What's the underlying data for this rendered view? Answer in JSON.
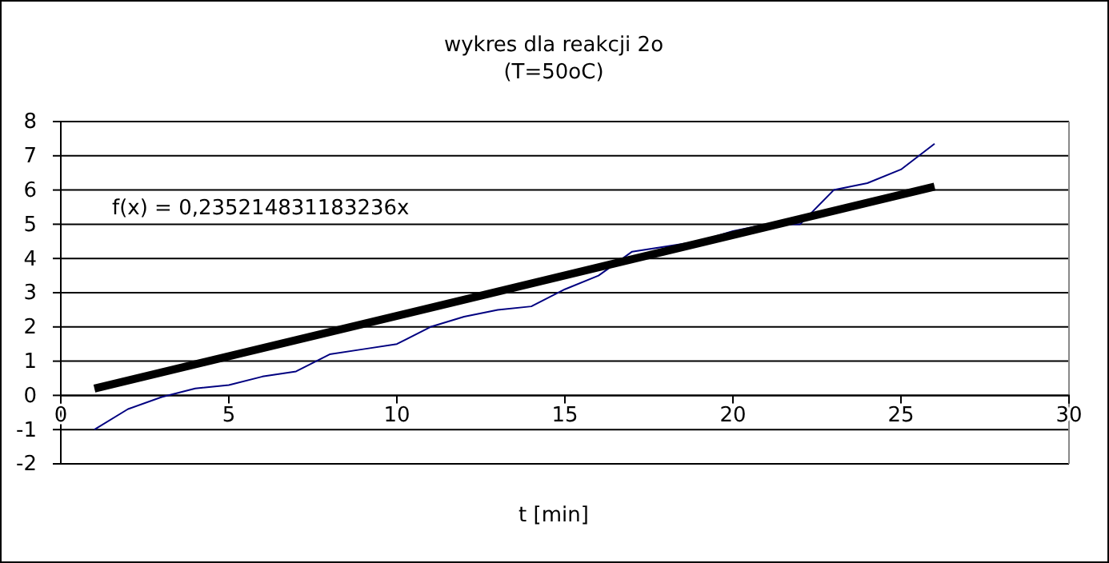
{
  "chart_data": {
    "type": "line",
    "title": "wykres dla reakcji 2o",
    "subtitle": "(T=50oC)",
    "xlabel": "t [min]",
    "xlim": [
      0,
      30
    ],
    "xticks": [
      0,
      5,
      10,
      15,
      20,
      25,
      30
    ],
    "ylim": [
      -2,
      8
    ],
    "yticks": [
      -2,
      -1,
      0,
      1,
      2,
      3,
      4,
      5,
      6,
      7,
      8
    ],
    "grid": "y",
    "marker": "none",
    "line_style": "solid",
    "annotations": [
      "f(x) = 0,235214831183236x"
    ],
    "series": [
      {
        "color": "#000080",
        "x": [
          1,
          2,
          3,
          4,
          5,
          6,
          7,
          8,
          9,
          10,
          11,
          12,
          13,
          14,
          15,
          16,
          17,
          18,
          19,
          20,
          21,
          22,
          23,
          24,
          25,
          26
        ],
        "values": [
          -1,
          -0.4,
          -0.05,
          0.2,
          0.3,
          0.55,
          0.7,
          1.2,
          1.35,
          1.5,
          2.0,
          2.3,
          2.5,
          2.6,
          3.1,
          3.5,
          4.2,
          4.35,
          4.5,
          4.8,
          5.0,
          5.0,
          6.0,
          6.2,
          6.6,
          7.35
        ]
      },
      {
        "type": "line",
        "color": "#000000",
        "x": [
          1,
          26
        ],
        "values": [
          0.2,
          6.1
        ]
      }
    ]
  }
}
